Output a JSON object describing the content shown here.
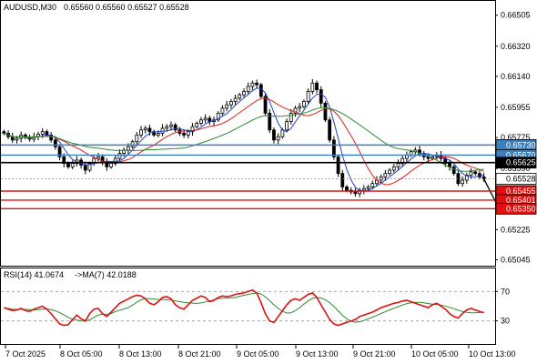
{
  "header": {
    "symbol": "AUDUSD,M30",
    "ohlc": "0.65560 0.65560 0.65527 0.65528"
  },
  "rsi_header": {
    "label": "RSI(14) 41.0674",
    "ma_label": "->MA(7) 42.0188"
  },
  "colors": {
    "candle": "#000000",
    "ma_fast": "#1f3fd0",
    "ma_mid": "#e02020",
    "ma_slow": "#2e8b2e",
    "level_blue": "#3a7fc0",
    "level_red": "#e01010",
    "rsi_line": "#e01010",
    "rsi_ma": "#2e8b2e",
    "arrow": "#000000"
  },
  "chart_data": [
    {
      "type": "candlestick",
      "title": "AUDUSD,M30",
      "ylim": [
        0.65015,
        0.66585
      ],
      "y_ticks": [
        "0.66505",
        "0.66320",
        "0.66140",
        "0.65955",
        "0.65775",
        "0.65590",
        "0.65225",
        "0.65045"
      ],
      "price_tags": [
        {
          "label": "0.65730",
          "value": 0.6573,
          "style": "blue"
        },
        {
          "label": "0.65670",
          "value": 0.6567,
          "style": "blue"
        },
        {
          "label": "0.65625",
          "value": 0.65625,
          "style": "black"
        },
        {
          "label": "0.65528",
          "value": 0.65528,
          "style": "current"
        },
        {
          "label": "0.65455",
          "value": 0.65455,
          "style": "red"
        },
        {
          "label": "0.65401",
          "value": 0.65401,
          "style": "red"
        },
        {
          "label": "0.65350",
          "value": 0.6535,
          "style": "red"
        }
      ],
      "levels": [
        {
          "value": 0.6573,
          "color": "blue"
        },
        {
          "value": 0.6567,
          "color": "blue"
        },
        {
          "value": 0.65625,
          "color": "black"
        },
        {
          "value": 0.65455,
          "color": "red"
        },
        {
          "value": 0.65401,
          "color": "red"
        },
        {
          "value": 0.6535,
          "color": "red"
        }
      ],
      "x_labels": [
        "7 Oct 2025",
        "8 Oct 05:00",
        "8 Oct 13:00",
        "8 Oct 21:00",
        "9 Oct 05:00",
        "9 Oct 13:00",
        "9 Oct 21:00",
        "10 Oct 05:00",
        "10 Oct 13:00"
      ],
      "close": [
        0.658,
        0.6578,
        0.6576,
        0.6577,
        0.6579,
        0.65775,
        0.65765,
        0.6578,
        0.65795,
        0.6581,
        0.6579,
        0.6576,
        0.6572,
        0.6566,
        0.6562,
        0.656,
        0.6562,
        0.6564,
        0.6561,
        0.6558,
        0.6562,
        0.6565,
        0.6566,
        0.6563,
        0.656,
        0.6562,
        0.6565,
        0.6568,
        0.657,
        0.6572,
        0.6575,
        0.6579,
        0.6582,
        0.6583,
        0.6581,
        0.6579,
        0.658,
        0.6583,
        0.6584,
        0.6585,
        0.6582,
        0.658,
        0.6579,
        0.6581,
        0.6584,
        0.6586,
        0.6588,
        0.6589,
        0.6587,
        0.6588,
        0.6592,
        0.6595,
        0.6597,
        0.6599,
        0.6601,
        0.6603,
        0.6605,
        0.6608,
        0.661,
        0.6609,
        0.6602,
        0.6592,
        0.6582,
        0.6576,
        0.6578,
        0.6582,
        0.6587,
        0.6592,
        0.6595,
        0.6596,
        0.6599,
        0.6605,
        0.661,
        0.6606,
        0.6598,
        0.6588,
        0.6576,
        0.6566,
        0.6556,
        0.6548,
        0.6546,
        0.6545,
        0.6544,
        0.6546,
        0.6547,
        0.6548,
        0.655,
        0.6552,
        0.6554,
        0.6556,
        0.6558,
        0.656,
        0.6562,
        0.6565,
        0.6567,
        0.6569,
        0.657,
        0.6568,
        0.6566,
        0.6565,
        0.6566,
        0.6567,
        0.6565,
        0.6562,
        0.656,
        0.6556,
        0.655,
        0.6552,
        0.6555,
        0.6557,
        0.6556,
        0.6554,
        0.65528
      ]
    },
    {
      "type": "line",
      "title": "RSI(14)",
      "ylim": [
        0,
        100
      ],
      "y_ticks": [
        70,
        30
      ],
      "series": [
        {
          "name": "RSI(14)",
          "values": [
            48,
            46,
            44,
            45,
            47,
            44,
            43,
            46,
            48,
            50,
            46,
            40,
            33,
            26,
            24,
            25,
            32,
            38,
            33,
            30,
            40,
            46,
            47,
            40,
            36,
            42,
            48,
            54,
            57,
            60,
            63,
            65,
            64,
            60,
            54,
            52,
            56,
            62,
            63,
            60,
            52,
            48,
            46,
            52,
            58,
            61,
            64,
            62,
            56,
            58,
            62,
            64,
            63,
            64,
            66,
            67,
            68,
            70,
            72,
            68,
            55,
            40,
            30,
            28,
            36,
            44,
            52,
            58,
            60,
            58,
            62,
            66,
            68,
            62,
            52,
            42,
            32,
            26,
            24,
            26,
            28,
            30,
            32,
            36,
            38,
            40,
            42,
            45,
            48,
            50,
            52,
            54,
            55,
            57,
            58,
            56,
            54,
            52,
            50,
            48,
            52,
            54,
            50,
            46,
            40,
            36,
            34,
            40,
            45,
            47,
            45,
            43,
            41
          ]
        }
      ]
    }
  ]
}
